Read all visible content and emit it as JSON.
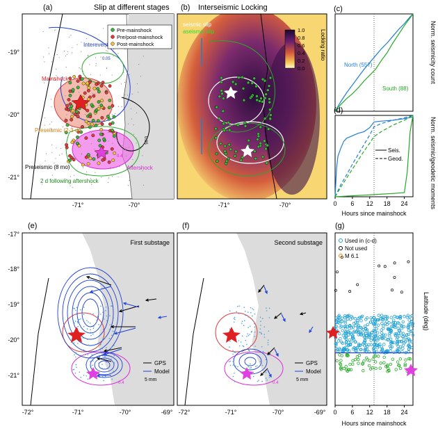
{
  "panels": {
    "a": {
      "label": "(a)",
      "title": "Slip at different stages",
      "yticks": [
        "-19°",
        "-20°",
        "-21°"
      ],
      "xticks": [
        "-71°",
        "-70°"
      ],
      "legend": [
        "Pre-mainshock",
        "Pre/post-mainshock",
        "Post-mainshock"
      ],
      "annotations": {
        "interevent": "Interevent",
        "mainshock": "Mainshock",
        "preseismic_short": "Preseismic (2-3 w)",
        "preseismic_long": "Preseismic (8 mo)",
        "aftershock": "Aftershock",
        "following": "2 d following aftershock",
        "contour_1": "0.05",
        "contour_2": "0.05",
        "contour_3": "0.4"
      }
    },
    "b": {
      "label": "(b)",
      "title": "Interseismic Locking",
      "xticks": [
        "-71°",
        "-70°"
      ],
      "legend": [
        "seismic slip",
        "aseismic slip"
      ],
      "colorbar": {
        "label": "Locking ratio",
        "ticks": [
          "1.0",
          "0.8",
          "0.6",
          "0.4",
          "0.2",
          "0.0"
        ]
      }
    },
    "c": {
      "label": "(c)",
      "ylabel": "Norm. seismicity count",
      "series": [
        {
          "name": "North (557)",
          "color": "#1e7fd6"
        },
        {
          "name": "South (88)",
          "color": "#22aa22"
        }
      ]
    },
    "d": {
      "label": "(d)",
      "ylabel": "Norm. seismic/geodetic moments",
      "xlabel": "Hours since mainshock",
      "xticks": [
        "0",
        "6",
        "12",
        "18",
        "24"
      ],
      "legend": [
        "Seis.",
        "Geod."
      ]
    },
    "e": {
      "label": "(e)",
      "subtitle": "First substage",
      "yticks": [
        "-17°",
        "-18°",
        "-19°",
        "-20°",
        "-21°"
      ],
      "xticks": [
        "-72°",
        "-71°",
        "-70°",
        "-69°"
      ],
      "legend": [
        "GPS",
        "Model"
      ],
      "scale": "5 mm",
      "contour": "0.4"
    },
    "f": {
      "label": "(f)",
      "subtitle": "Second substage",
      "xticks": [
        "-72°",
        "-71°",
        "-70°",
        "-69°"
      ],
      "legend": [
        "GPS",
        "Model"
      ],
      "scale": "5 mm",
      "contour": "0.4"
    },
    "g": {
      "label": "(g)",
      "ylabel": "Latitude (deg)",
      "xlabel": "Hours since mainshock",
      "xticks": [
        "0",
        "6",
        "12",
        "18",
        "24"
      ],
      "legend": [
        "Used in (c-d)",
        "Not used",
        "M 6.1"
      ]
    }
  },
  "chart_data": [
    {
      "type": "line",
      "panel": "c",
      "xlim": [
        0,
        27
      ],
      "ylim": [
        0,
        1
      ],
      "marker_x": 13.5,
      "series": [
        {
          "name": "North (557)",
          "color": "#1e7fd6",
          "x": [
            0,
            2,
            4,
            6,
            8,
            10,
            12,
            14,
            16,
            18,
            20,
            22,
            24,
            26,
            27
          ],
          "y": [
            0,
            0.1,
            0.19,
            0.27,
            0.35,
            0.43,
            0.5,
            0.57,
            0.64,
            0.7,
            0.77,
            0.84,
            0.9,
            0.97,
            1.0
          ]
        },
        {
          "name": "South (88)",
          "color": "#22aa22",
          "x": [
            0,
            2,
            4,
            6,
            8,
            10,
            12,
            14,
            16,
            18,
            20,
            22,
            24,
            26,
            27
          ],
          "y": [
            0,
            0.07,
            0.13,
            0.18,
            0.24,
            0.31,
            0.37,
            0.43,
            0.52,
            0.6,
            0.7,
            0.79,
            0.88,
            0.96,
            1.0
          ]
        }
      ]
    },
    {
      "type": "line",
      "panel": "d",
      "xlim": [
        0,
        27
      ],
      "ylim": [
        0,
        1
      ],
      "marker_x": 13.5,
      "series": [
        {
          "color": "#1e7fd6",
          "style": "solid",
          "x": [
            0,
            0.5,
            1,
            2,
            3,
            4,
            6,
            8,
            10,
            12,
            13.5,
            16,
            20,
            24,
            27
          ],
          "y": [
            0,
            0.35,
            0.5,
            0.6,
            0.68,
            0.72,
            0.75,
            0.78,
            0.8,
            0.85,
            0.92,
            0.93,
            0.94,
            0.96,
            0.98
          ]
        },
        {
          "color": "#1e7fd6",
          "style": "dashed",
          "x": [
            0,
            2,
            4,
            6,
            8,
            10,
            12,
            13.5,
            16,
            20,
            24,
            27
          ],
          "y": [
            0,
            0.15,
            0.27,
            0.4,
            0.52,
            0.64,
            0.76,
            0.86,
            0.9,
            0.94,
            0.97,
            1.0
          ]
        },
        {
          "color": "#22aa22",
          "style": "dashed",
          "x": [
            0,
            2,
            4,
            6,
            8,
            10,
            12,
            13.5,
            16,
            20,
            24,
            27
          ],
          "y": [
            0,
            0.12,
            0.23,
            0.34,
            0.45,
            0.56,
            0.66,
            0.74,
            0.8,
            0.88,
            0.94,
            1.0
          ]
        },
        {
          "color": "#22aa22",
          "style": "solid",
          "x": [
            0,
            5,
            10,
            15,
            20,
            24,
            25,
            26,
            27
          ],
          "y": [
            0,
            0.01,
            0.02,
            0.03,
            0.04,
            0.05,
            0.3,
            0.8,
            1.0
          ]
        }
      ]
    },
    {
      "type": "scatter",
      "panel": "g",
      "xlim": [
        0,
        27
      ],
      "ylim": [
        -21.6,
        -17
      ],
      "marker_x": 13.5,
      "boundary_lat": -20.2
    }
  ]
}
